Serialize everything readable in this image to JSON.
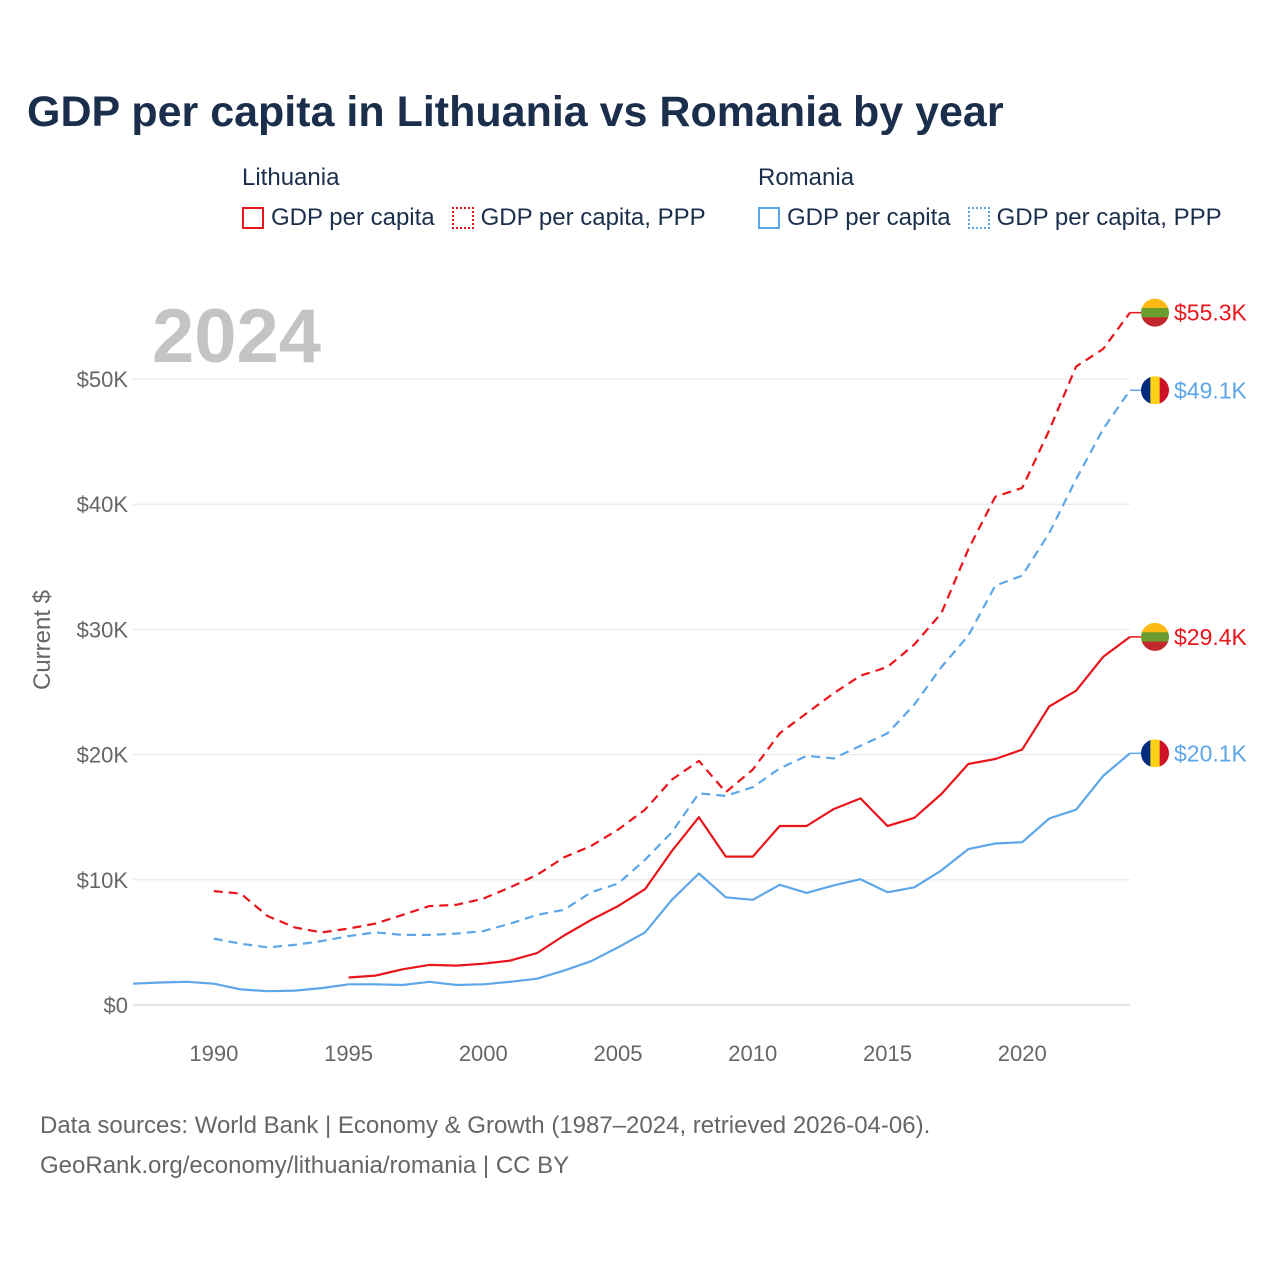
{
  "title": "GDP per capita in Lithuania vs Romania by year",
  "legend": {
    "groups": [
      {
        "name": "Lithuania",
        "color": "#e8151b",
        "items": [
          {
            "label": "GDP per capita",
            "style": "solid"
          },
          {
            "label": "GDP per capita, PPP",
            "style": "dotted"
          }
        ]
      },
      {
        "name": "Romania",
        "color": "#5da6e8",
        "items": [
          {
            "label": "GDP per capita",
            "style": "solid"
          },
          {
            "label": "GDP per capita, PPP",
            "style": "dotted"
          }
        ]
      }
    ]
  },
  "footer": {
    "line1": "Data sources: World Bank | Economy & Growth (1987–2024, retrieved 2026-04-06).",
    "line2": "GeoRank.org/economy/lithuania/romania | CC BY"
  },
  "chart_data": {
    "type": "line",
    "year_watermark": "2024",
    "ylabel": "Current $",
    "xlim": [
      1987,
      2024
    ],
    "ylim": [
      0,
      55300
    ],
    "x_ticks": [
      1990,
      1995,
      2000,
      2005,
      2010,
      2015,
      2020
    ],
    "y_ticks": [
      0,
      10000,
      20000,
      30000,
      40000,
      50000
    ],
    "y_tick_labels": [
      "$0",
      "$10K",
      "$20K",
      "$30K",
      "$40K",
      "$50K"
    ],
    "grid": true,
    "series": [
      {
        "name": "Lithuania GDP per capita, PPP",
        "country": "Lithuania",
        "color": "#e8151b",
        "dashed": true,
        "end_label": "$55.3K",
        "flag": "lithuania",
        "x": [
          1990,
          1991,
          1992,
          1993,
          1994,
          1995,
          1996,
          1997,
          1998,
          1999,
          2000,
          2001,
          2002,
          2003,
          2004,
          2005,
          2006,
          2007,
          2008,
          2009,
          2010,
          2011,
          2012,
          2013,
          2014,
          2015,
          2016,
          2017,
          2018,
          2019,
          2020,
          2021,
          2022,
          2023,
          2024
        ],
        "values": [
          9100,
          8900,
          7100,
          6200,
          5800,
          6100,
          6500,
          7200,
          7900,
          8000,
          8500,
          9400,
          10400,
          11800,
          12700,
          14000,
          15600,
          18000,
          19500,
          17000,
          18800,
          21700,
          23300,
          24900,
          26300,
          27000,
          28800,
          31300,
          36400,
          40600,
          41300,
          45900,
          51000,
          52400,
          55300
        ]
      },
      {
        "name": "Romania GDP per capita, PPP",
        "country": "Romania",
        "color": "#5da6e8",
        "dashed": true,
        "end_label": "$49.1K",
        "flag": "romania",
        "x": [
          1990,
          1991,
          1992,
          1993,
          1994,
          1995,
          1996,
          1997,
          1998,
          1999,
          2000,
          2001,
          2002,
          2003,
          2004,
          2005,
          2006,
          2007,
          2008,
          2009,
          2010,
          2011,
          2012,
          2013,
          2014,
          2015,
          2016,
          2017,
          2018,
          2019,
          2020,
          2021,
          2022,
          2023,
          2024
        ],
        "values": [
          5300,
          4900,
          4600,
          4800,
          5100,
          5500,
          5800,
          5600,
          5600,
          5700,
          5900,
          6500,
          7200,
          7600,
          9000,
          9700,
          11600,
          13800,
          16900,
          16700,
          17400,
          18900,
          19900,
          19700,
          20700,
          21700,
          24000,
          27000,
          29500,
          33500,
          34300,
          37700,
          42000,
          46000,
          49100
        ]
      },
      {
        "name": "Lithuania GDP per capita",
        "country": "Lithuania",
        "color": "#e8151b",
        "dashed": false,
        "end_label": "$29.4K",
        "flag": "lithuania",
        "x": [
          1995,
          1996,
          1997,
          1998,
          1999,
          2000,
          2001,
          2002,
          2003,
          2004,
          2005,
          2006,
          2007,
          2008,
          2009,
          2010,
          2011,
          2012,
          2013,
          2014,
          2015,
          2016,
          2017,
          2018,
          2019,
          2020,
          2021,
          2022,
          2023,
          2024
        ],
        "values": [
          2200,
          2350,
          2850,
          3200,
          3150,
          3300,
          3550,
          4150,
          5550,
          6800,
          7900,
          9250,
          12300,
          15000,
          11850,
          11850,
          14300,
          14300,
          15650,
          16500,
          14300,
          14950,
          16850,
          19250,
          19650,
          20400,
          23850,
          25100,
          27800,
          29400
        ]
      },
      {
        "name": "Romania GDP per capita",
        "country": "Romania",
        "color": "#5da6e8",
        "dashed": false,
        "end_label": "$20.1K",
        "flag": "romania",
        "x": [
          1987,
          1988,
          1989,
          1990,
          1991,
          1992,
          1993,
          1994,
          1995,
          1996,
          1997,
          1998,
          1999,
          2000,
          2001,
          2002,
          2003,
          2004,
          2005,
          2006,
          2007,
          2008,
          2009,
          2010,
          2011,
          2012,
          2013,
          2014,
          2015,
          2016,
          2017,
          2018,
          2019,
          2020,
          2021,
          2022,
          2023,
          2024
        ],
        "values": [
          1700,
          1800,
          1850,
          1700,
          1250,
          1100,
          1150,
          1350,
          1650,
          1650,
          1600,
          1850,
          1600,
          1650,
          1850,
          2100,
          2750,
          3500,
          4600,
          5800,
          8400,
          10500,
          8600,
          8400,
          9600,
          8950,
          9550,
          10050,
          9000,
          9400,
          10750,
          12450,
          12900,
          13000,
          14900,
          15600,
          18300,
          20100
        ]
      }
    ],
    "flags": {
      "lithuania": [
        "#fdb913",
        "#6a9d2e",
        "#c1272d"
      ],
      "romania": [
        "#002b7f",
        "#fcd116",
        "#ce1126"
      ]
    }
  }
}
